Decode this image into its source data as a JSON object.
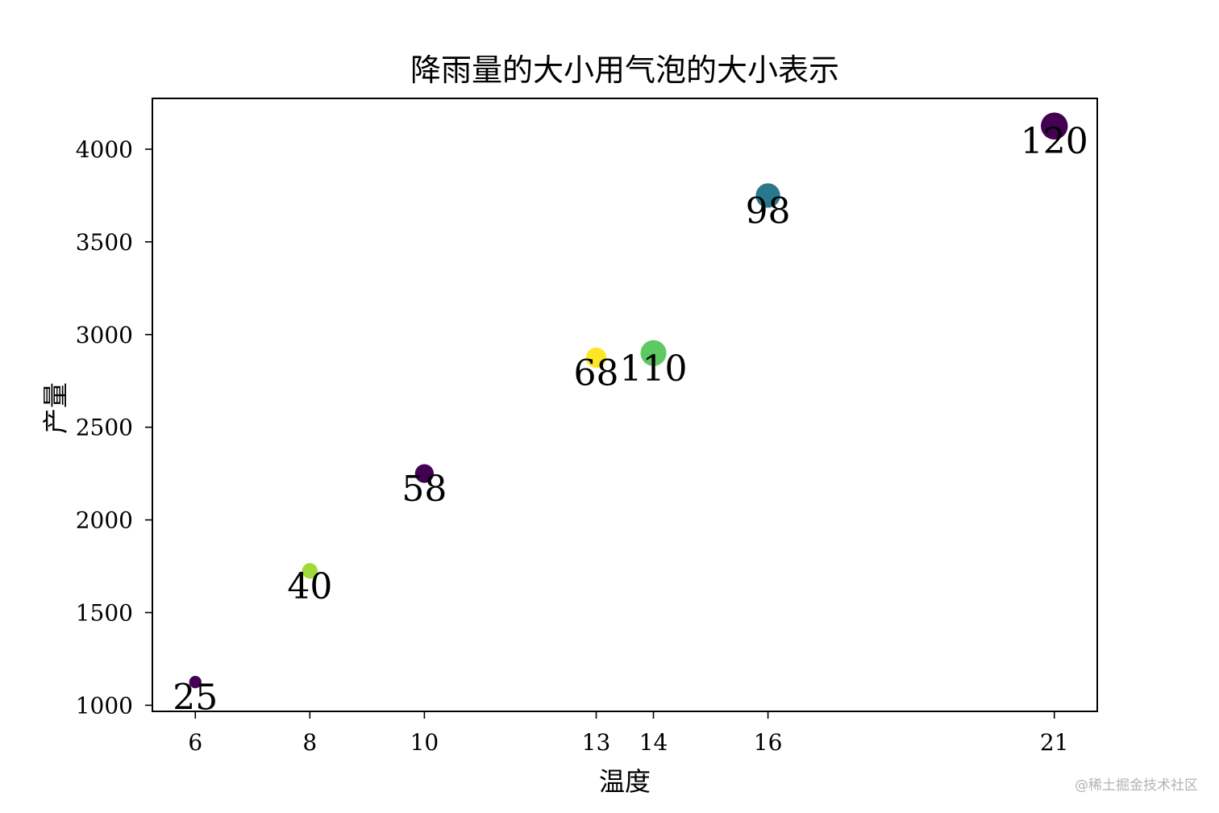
{
  "chart_data": {
    "type": "scatter",
    "title": "降雨量的大小用气泡的大小表示",
    "xlabel": "温度",
    "ylabel": "产量",
    "x": [
      6,
      8,
      10,
      13,
      14,
      16,
      21
    ],
    "y": [
      1125,
      1725,
      2250,
      2875,
      2900,
      3750,
      4125
    ],
    "sizes": [
      25,
      40,
      58,
      68,
      110,
      98,
      120
    ],
    "point_labels": [
      "25",
      "40",
      "58",
      "68",
      "110",
      "98",
      "120"
    ],
    "colors": [
      "#440154",
      "#a0da39",
      "#440154",
      "#fde725",
      "#5ec962",
      "#2a788e",
      "#440154"
    ],
    "xticks": [
      6,
      8,
      10,
      13,
      14,
      16,
      21
    ],
    "xtick_labels": [
      "6",
      "8",
      "10",
      "13",
      "14",
      "16",
      "21"
    ],
    "yticks": [
      1000,
      1500,
      2000,
      2500,
      3000,
      3500,
      4000
    ],
    "ytick_labels": [
      "1000",
      "1500",
      "2000",
      "2500",
      "3000",
      "3500",
      "4000"
    ],
    "xlim": [
      5.25,
      21.75
    ],
    "ylim": [
      967,
      4274
    ],
    "grid": false,
    "legend": "none"
  },
  "watermark": "@稀土掘金技术社区"
}
